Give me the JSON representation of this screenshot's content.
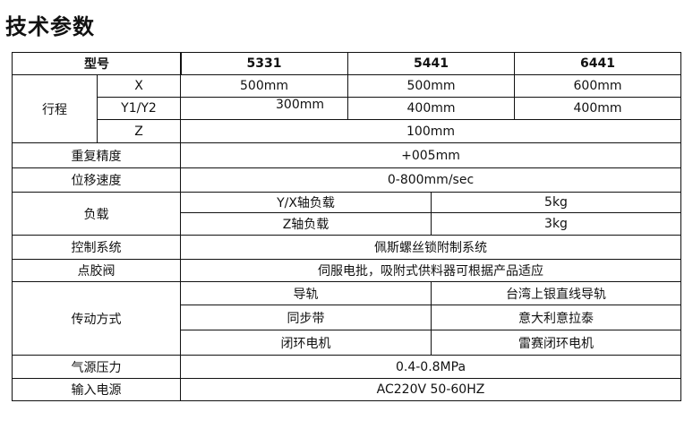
{
  "title": "技术参数",
  "header": {
    "model_label": "型号",
    "models": [
      "5331",
      "5441",
      "6441"
    ]
  },
  "stroke": {
    "label": "行程",
    "x": {
      "label": "X",
      "values": [
        "500mm",
        "500mm",
        "600mm"
      ]
    },
    "y": {
      "label": "Y1/Y2",
      "values": [
        "300mm",
        "400mm",
        "400mm"
      ]
    },
    "z": {
      "label": "Z",
      "value": "100mm"
    }
  },
  "repeat_precision": {
    "label": "重复精度",
    "value": "+005mm"
  },
  "speed": {
    "label": "位移速度",
    "value": "0-800mm/sec"
  },
  "load": {
    "label": "负载",
    "rows": [
      {
        "name": "Y/X轴负载",
        "value": "5kg"
      },
      {
        "name": "Z轴负载",
        "value": "3kg"
      }
    ]
  },
  "control": {
    "label": "控制系统",
    "value": "佩斯螺丝锁附制系统"
  },
  "valve": {
    "label": "点胶阀",
    "value": "伺服电批，吸附式供料器可根据产品适应"
  },
  "drive": {
    "label": "传动方式",
    "rows": [
      {
        "name": "导轨",
        "value": "台湾上银直线导轨"
      },
      {
        "name": "同步带",
        "value": "意大利意拉泰"
      },
      {
        "name": "闭环电机",
        "value": "雷赛闭环电机"
      }
    ]
  },
  "air": {
    "label": "气源压力",
    "value": "0.4-0.8MPa"
  },
  "power": {
    "label": "输入电源",
    "value": "AC220V 50-60HZ"
  }
}
